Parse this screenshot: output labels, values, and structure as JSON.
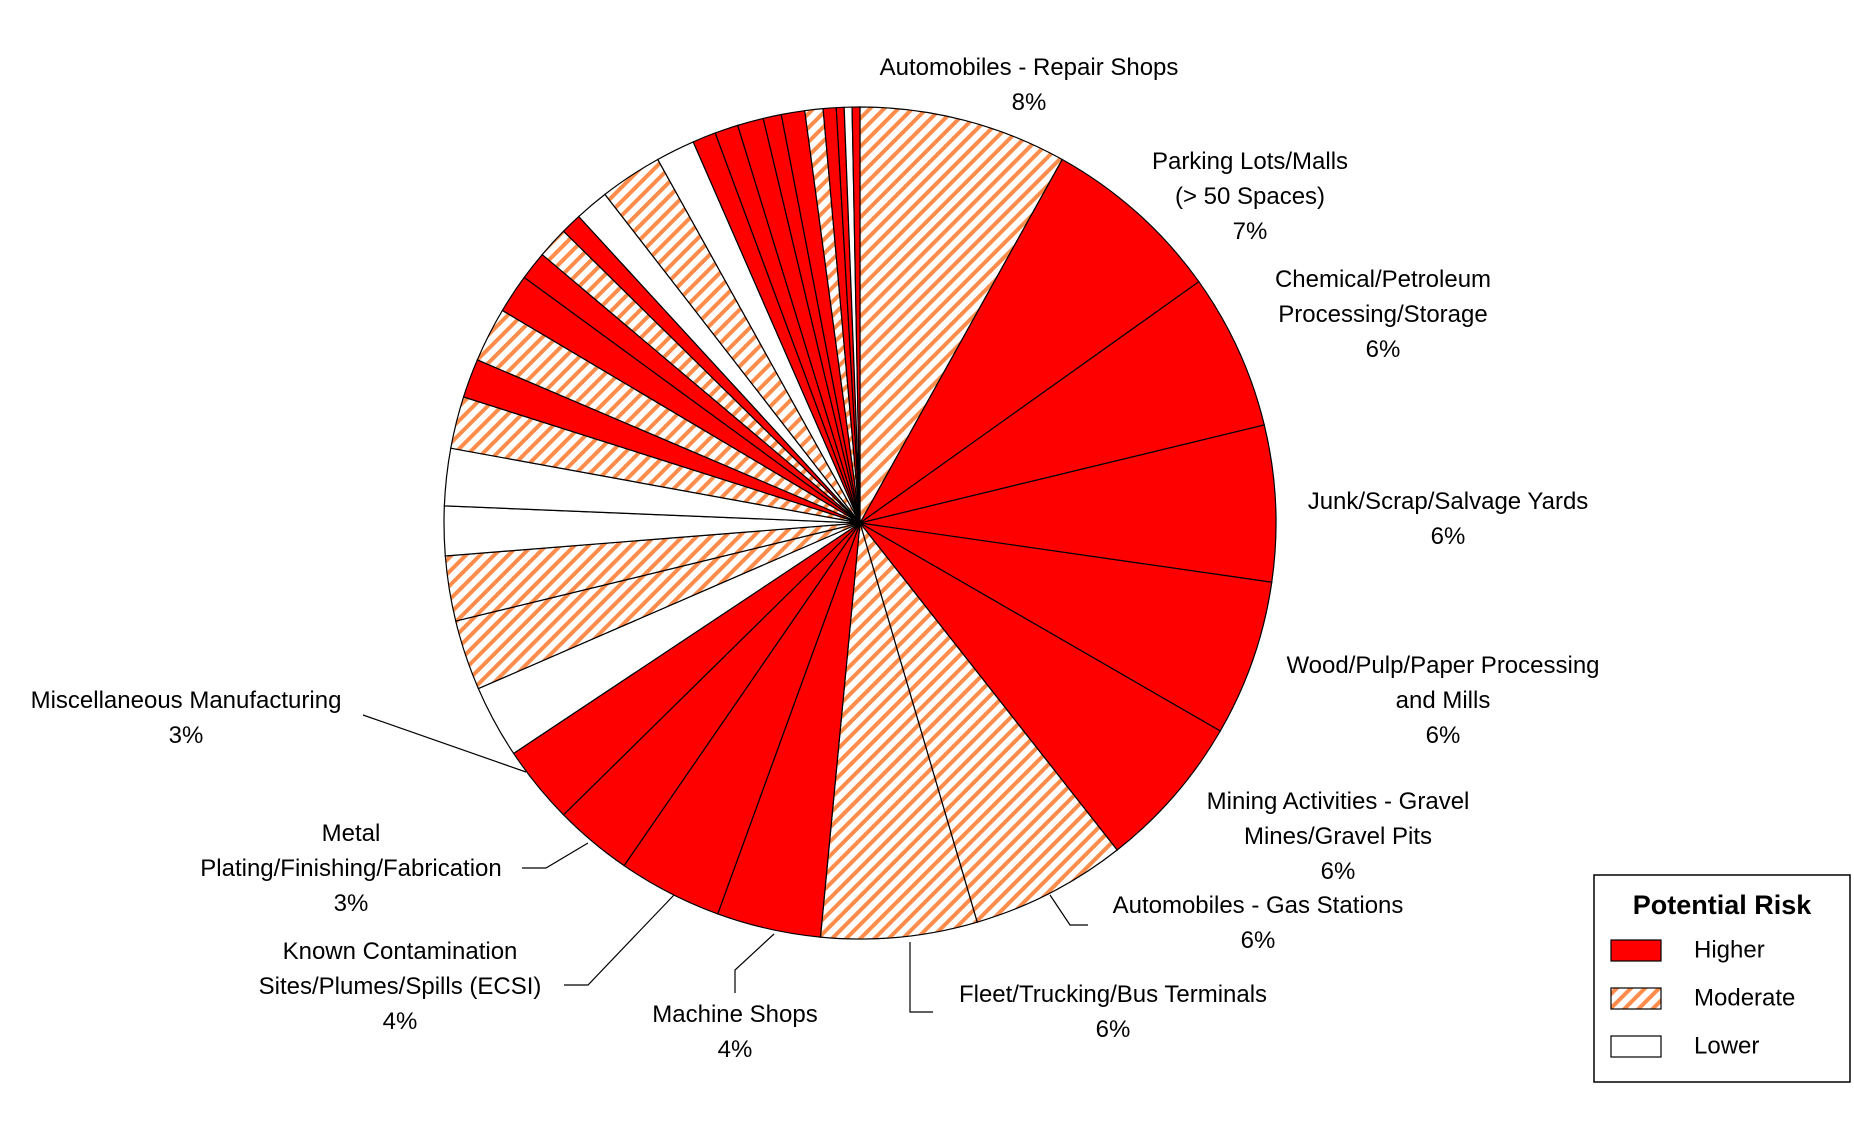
{
  "chart_data": {
    "type": "pie",
    "categories": [
      "Automobiles - Repair Shops",
      "Parking Lots/Malls\n(> 50 Spaces)",
      "Chemical/Petroleum\nProcessing/Storage",
      "Junk/Scrap/Salvage Yards",
      "Wood/Pulp/Paper Processing\nand Mills",
      "Mining Activities - Gravel\nMines/Gravel Pits",
      "Automobiles - Gas Stations",
      "Fleet/Trucking/Bus Terminals",
      "Machine Shops",
      "Known Contamination\nSites/Plumes/Spills (ECSI)",
      "Metal\nPlating/Finishing/Fabrication",
      "Miscellaneous Manufacturing",
      null,
      null,
      null,
      null,
      null,
      null,
      null,
      null,
      null,
      null,
      null,
      null,
      null,
      null,
      null,
      null,
      null,
      null,
      null,
      null,
      null,
      null,
      null,
      null,
      null
    ],
    "values": [
      8,
      7,
      6,
      6,
      6,
      6,
      6,
      6,
      4,
      4,
      3,
      3,
      2.8,
      2.7,
      2.5,
      1.9,
      2.2,
      2,
      1.5,
      2.1,
      1.5,
      1.1,
      1.2,
      0.8,
      1.3,
      2.4,
      1.5,
      0.9,
      0.9,
      1,
      0.7,
      0.9,
      0.7,
      0.5,
      0.3,
      0.3,
      0.3
    ],
    "value_labels": [
      "8%",
      "7%",
      "6%",
      "6%",
      "6%",
      "6%",
      "6%",
      "6%",
      "4%",
      "4%",
      "3%",
      "3%",
      null,
      null,
      null,
      null,
      null,
      null,
      null,
      null,
      null,
      null,
      null,
      null,
      null,
      null,
      null,
      null,
      null,
      null,
      null,
      null,
      null,
      null,
      null,
      null,
      null
    ],
    "risk": [
      "Moderate",
      "Higher",
      "Higher",
      "Higher",
      "Higher",
      "Higher",
      "Moderate",
      "Moderate",
      "Higher",
      "Higher",
      "Higher",
      "Higher",
      "Lower",
      "Moderate",
      "Moderate",
      "Lower",
      "Lower",
      "Moderate",
      "Higher",
      "Moderate",
      "Higher",
      "Higher",
      "Moderate",
      "Higher",
      "Lower",
      "Moderate",
      "Lower",
      "Higher",
      "Higher",
      "Higher",
      "Higher",
      "Higher",
      "Moderate",
      "Higher",
      "Higher",
      "Lower",
      "Higher"
    ],
    "legend": {
      "title": "Potential Risk",
      "items": [
        {
          "name": "Higher",
          "color": "#ff0000",
          "pattern": "solid"
        },
        {
          "name": "Moderate",
          "color": "#ff8c4a",
          "pattern": "hatch"
        },
        {
          "name": "Lower",
          "color": "#ffffff",
          "pattern": "solid"
        }
      ]
    }
  }
}
